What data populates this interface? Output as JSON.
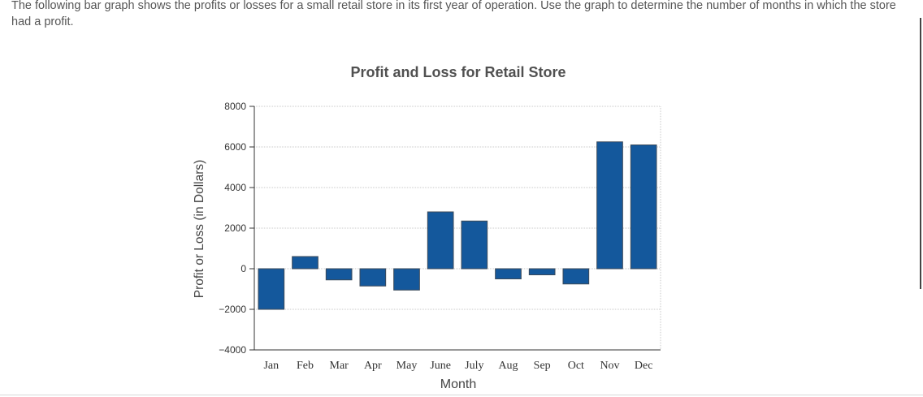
{
  "question": {
    "text": "The following bar graph shows the profits or losses for a small retail store in its first year of operation. Use the graph to determine the number of months in which the store had a profit."
  },
  "chart_data": {
    "type": "bar",
    "title": "Profit and Loss for Retail Store",
    "xlabel": "Month",
    "ylabel": "Profit or Loss (in Dollars)",
    "categories": [
      "Jan",
      "Feb",
      "Mar",
      "Apr",
      "May",
      "June",
      "July",
      "Aug",
      "Sep",
      "Oct",
      "Nov",
      "Dec"
    ],
    "values": [
      -2000,
      600,
      -550,
      -850,
      -1050,
      2800,
      2350,
      -500,
      -300,
      -750,
      6250,
      6100
    ],
    "ylim": [
      -4000,
      8000
    ],
    "yticks": [
      8000,
      6000,
      4000,
      2000,
      0,
      -2000,
      -4000
    ],
    "ytick_labels": [
      "8000",
      "6000",
      "4000",
      "2000",
      "0",
      "−2000",
      "−4000"
    ],
    "grid": true,
    "bar_color": "#14589c",
    "bar_edge_color": "#3b4a5a"
  }
}
